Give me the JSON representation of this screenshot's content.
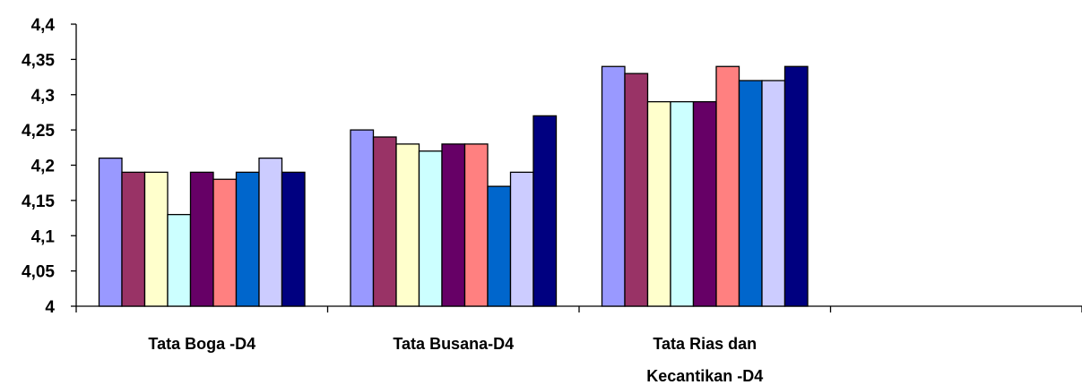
{
  "chart_data": {
    "type": "bar",
    "title": "",
    "xlabel": "",
    "ylabel": "",
    "ylim": [
      4,
      4.4
    ],
    "yticks": [
      "4",
      "4,05",
      "4,1",
      "4,15",
      "4,2",
      "4,25",
      "4,3",
      "4,35",
      "4,4"
    ],
    "yticks_values": [
      4,
      4.05,
      4.1,
      4.15,
      4.2,
      4.25,
      4.3,
      4.35,
      4.4
    ],
    "grid": false,
    "legend": "none",
    "categories": [
      [
        "Tata Boga -D4"
      ],
      [
        "Tata Busana-D4"
      ],
      [
        "Tata Rias dan",
        "Kecantikan -D4"
      ],
      [
        ""
      ]
    ],
    "series": [
      {
        "color": "#9999ff",
        "values": [
          4.21,
          4.25,
          4.34,
          null
        ]
      },
      {
        "color": "#993366",
        "values": [
          4.19,
          4.24,
          4.33,
          null
        ]
      },
      {
        "color": "#ffffcc",
        "values": [
          4.19,
          4.23,
          4.29,
          null
        ]
      },
      {
        "color": "#ccffff",
        "values": [
          4.13,
          4.22,
          4.29,
          null
        ]
      },
      {
        "color": "#660066",
        "values": [
          4.19,
          4.23,
          4.29,
          null
        ]
      },
      {
        "color": "#ff8080",
        "values": [
          4.18,
          4.23,
          4.34,
          null
        ]
      },
      {
        "color": "#0066cc",
        "values": [
          4.19,
          4.17,
          4.32,
          null
        ]
      },
      {
        "color": "#ccccff",
        "values": [
          4.21,
          4.19,
          4.32,
          null
        ]
      },
      {
        "color": "#000080",
        "values": [
          4.19,
          4.27,
          4.34,
          null
        ]
      }
    ]
  }
}
